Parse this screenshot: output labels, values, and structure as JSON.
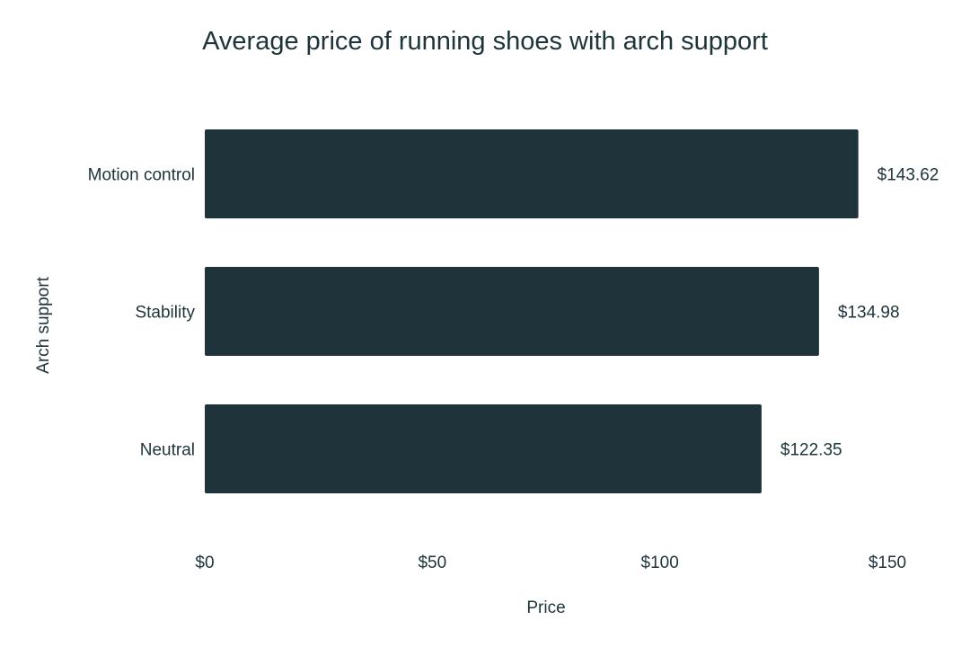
{
  "chart_data": {
    "type": "bar",
    "orientation": "horizontal",
    "title": "Average price of running shoes with arch support",
    "xlabel": "Price",
    "ylabel": "Arch support",
    "categories": [
      "Motion control",
      "Stability",
      "Neutral"
    ],
    "values": [
      143.62,
      134.98,
      122.35
    ],
    "value_labels": [
      "$143.62",
      "$134.98",
      "$122.35"
    ],
    "xlim": [
      0,
      150
    ],
    "x_ticks": [
      0,
      50,
      100,
      150
    ],
    "x_tick_labels": [
      "$0",
      "$50",
      "$100",
      "$150"
    ],
    "grid": false,
    "legend": "none",
    "bar_color": "#1e333a",
    "text_color": "#1e333a"
  }
}
